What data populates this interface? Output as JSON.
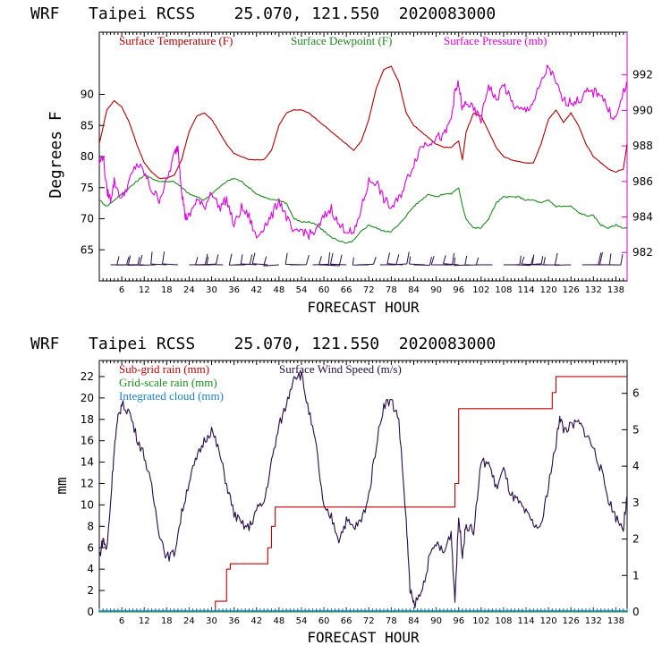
{
  "colors": {
    "temperature": "#b00000",
    "dewpoint": "#1e8a1e",
    "pressure": "#dd00dd",
    "wind": "#2a0a4a",
    "subgrid": "#c00000",
    "gridscale": "#1e8a1e",
    "cloud": "#1a7fd0",
    "axis": "#000000"
  },
  "chart_data": [
    {
      "type": "line",
      "title": "WRF   Taipei RCSS    25.070, 121.550  2020083000",
      "xlabel": "FORECAST HOUR",
      "ylabel": "Degrees F",
      "xlim": [
        0,
        141
      ],
      "ylim": [
        60,
        100
      ],
      "y2lim": [
        980.4,
        994.4
      ],
      "xticks": [
        6,
        12,
        18,
        24,
        30,
        36,
        42,
        48,
        54,
        60,
        66,
        72,
        78,
        84,
        90,
        96,
        102,
        108,
        114,
        120,
        126,
        132,
        138
      ],
      "yticks": [
        65,
        70,
        75,
        80,
        85,
        90
      ],
      "y2ticks": [
        982,
        984,
        986,
        988,
        990,
        992
      ],
      "legend": [
        "Surface Temperature (F)",
        "Surface Dewpoint (F)",
        "Surface Pressure (mb)"
      ],
      "series": [
        {
          "name": "Surface Temperature (F)",
          "axis": "left",
          "x": [
            0,
            2,
            4,
            6,
            8,
            10,
            12,
            14,
            16,
            18,
            20,
            22,
            24,
            26,
            28,
            30,
            32,
            34,
            36,
            38,
            40,
            42,
            44,
            46,
            48,
            50,
            52,
            54,
            56,
            58,
            60,
            62,
            64,
            66,
            68,
            70,
            72,
            74,
            76,
            78,
            80,
            82,
            84,
            86,
            88,
            90,
            92,
            94,
            96,
            97,
            98,
            100,
            102,
            104,
            106,
            108,
            110,
            112,
            114,
            116,
            118,
            120,
            122,
            124,
            126,
            128,
            130,
            132,
            134,
            136,
            138,
            140,
            141
          ],
          "values": [
            82,
            87.5,
            89,
            88,
            85.5,
            82,
            79,
            77.5,
            76.5,
            76.5,
            77,
            79.5,
            84,
            86.5,
            87,
            86,
            84,
            82,
            80.5,
            80,
            79.5,
            79.5,
            79.5,
            81,
            85,
            87,
            87.5,
            87.5,
            87,
            86,
            85,
            84,
            83,
            82,
            81,
            82.5,
            86,
            91,
            94,
            94.5,
            92,
            87,
            85,
            84,
            83,
            82,
            81.5,
            81.5,
            82.5,
            79.5,
            84,
            87,
            86.5,
            84,
            81.5,
            80,
            79.5,
            79.2,
            79,
            79,
            82,
            86,
            87.5,
            85.5,
            87,
            85,
            82,
            80,
            79,
            78,
            77.5,
            78,
            82
          ]
        },
        {
          "name": "Surface Dewpoint (F)",
          "axis": "left",
          "x": [
            0,
            2,
            4,
            6,
            8,
            10,
            12,
            14,
            16,
            18,
            20,
            22,
            24,
            26,
            28,
            30,
            32,
            34,
            36,
            38,
            40,
            42,
            44,
            46,
            48,
            50,
            52,
            54,
            56,
            58,
            60,
            62,
            64,
            66,
            68,
            70,
            72,
            74,
            76,
            78,
            80,
            82,
            84,
            86,
            88,
            90,
            92,
            94,
            96,
            97,
            98,
            100,
            102,
            104,
            106,
            108,
            110,
            112,
            114,
            116,
            118,
            120,
            122,
            124,
            126,
            128,
            130,
            132,
            134,
            136,
            138,
            140,
            141
          ],
          "values": [
            73,
            72,
            73,
            74,
            75,
            76,
            77,
            76.5,
            76,
            76,
            76,
            75,
            74,
            73.5,
            73,
            74,
            75,
            76,
            76.5,
            76,
            75,
            74,
            73.5,
            73,
            73,
            72.5,
            70,
            69.5,
            69.5,
            69,
            68,
            67,
            66.5,
            66,
            66.5,
            68,
            69,
            68.5,
            68,
            68,
            69,
            70.5,
            72,
            73,
            74,
            73.5,
            74,
            74,
            75,
            72,
            70,
            68.5,
            68.5,
            70,
            72.5,
            73.5,
            73.5,
            73.5,
            73,
            73,
            72.5,
            73,
            72,
            72,
            72,
            71,
            70.5,
            70.5,
            69,
            68.5,
            69,
            68.5,
            68.5
          ]
        },
        {
          "name": "Surface Pressure (mb)",
          "axis": "right",
          "x": [
            0,
            1,
            2,
            3,
            4,
            6,
            8,
            10,
            12,
            14,
            16,
            18,
            20,
            21,
            22,
            23,
            24,
            26,
            28,
            30,
            32,
            34,
            36,
            38,
            40,
            42,
            44,
            46,
            48,
            50,
            52,
            54,
            56,
            58,
            60,
            62,
            64,
            66,
            68,
            70,
            72,
            74,
            76,
            78,
            80,
            82,
            84,
            86,
            88,
            90,
            92,
            94,
            95,
            96,
            97,
            98,
            100,
            102,
            104,
            106,
            108,
            110,
            112,
            114,
            116,
            118,
            120,
            122,
            124,
            126,
            128,
            130,
            132,
            134,
            136,
            138,
            140,
            141
          ],
          "values": [
            987,
            987.5,
            985.5,
            985,
            986,
            985,
            986,
            987,
            986.5,
            985.5,
            985,
            986,
            987.5,
            988,
            985.5,
            984,
            984,
            985,
            984.5,
            985.5,
            984.5,
            985,
            983.5,
            984.5,
            984,
            982.8,
            983.5,
            984,
            985,
            984,
            983,
            983.3,
            983,
            983.2,
            984,
            984.5,
            983.5,
            983.3,
            983,
            984.5,
            986,
            986,
            985,
            984.5,
            985,
            986,
            987,
            988,
            988.2,
            988.5,
            988.5,
            989.5,
            991,
            991.5,
            990,
            990.5,
            990,
            989.5,
            991.5,
            990.5,
            991.5,
            990.5,
            990,
            990,
            990.5,
            991.5,
            992.5,
            991.5,
            990.5,
            990.5,
            990.5,
            991,
            991,
            991,
            990,
            989.5,
            991,
            991.5
          ]
        }
      ],
      "wind_barbs_note": "surface wind barbs plotted along bottom of panel"
    },
    {
      "type": "line",
      "title": "WRF   Taipei RCSS    25.070, 121.550  2020083000",
      "xlabel": "FORECAST HOUR",
      "ylabel": "mm",
      "xlim": [
        0,
        141
      ],
      "ylim": [
        0,
        23.5
      ],
      "y2lim": [
        0,
        6.9
      ],
      "xticks": [
        6,
        12,
        18,
        24,
        30,
        36,
        42,
        48,
        54,
        60,
        66,
        72,
        78,
        84,
        90,
        96,
        102,
        108,
        114,
        120,
        126,
        132,
        138
      ],
      "yticks": [
        0,
        2,
        4,
        6,
        8,
        10,
        12,
        14,
        16,
        18,
        20,
        22
      ],
      "y2ticks": [
        0,
        1,
        2,
        3,
        4,
        5,
        6
      ],
      "legend": [
        "Sub-grid rain (mm)",
        "Grid-scale rain (mm)",
        "Integrated cloud (mm)",
        "Surface Wind Speed (m/s)"
      ],
      "series": [
        {
          "name": "Sub-grid rain (mm)",
          "axis": "left",
          "step": true,
          "x": [
            0,
            28,
            31,
            32,
            34,
            35,
            44,
            45,
            46,
            47,
            94,
            95,
            96,
            100,
            120,
            121,
            122,
            141
          ],
          "values": [
            0,
            0,
            1,
            1,
            4,
            4.5,
            4.5,
            6,
            8,
            9.8,
            9.8,
            12,
            19,
            19,
            19,
            20.5,
            22,
            22
          ]
        },
        {
          "name": "Grid-scale rain (mm)",
          "axis": "left",
          "x": [
            0,
            141
          ],
          "values": [
            0,
            0
          ]
        },
        {
          "name": "Integrated cloud (mm)",
          "axis": "left",
          "x": [
            0,
            141
          ],
          "values": [
            0.1,
            0.1
          ]
        },
        {
          "name": "Surface Wind Speed (m/s)",
          "axis": "right",
          "x": [
            0,
            1,
            2,
            3,
            4,
            5,
            6,
            8,
            10,
            12,
            14,
            16,
            18,
            20,
            22,
            24,
            26,
            28,
            30,
            32,
            34,
            36,
            38,
            40,
            42,
            44,
            46,
            48,
            50,
            52,
            54,
            56,
            58,
            60,
            62,
            64,
            66,
            68,
            70,
            72,
            74,
            76,
            78,
            80,
            82,
            83,
            84,
            86,
            88,
            90,
            92,
            94,
            95,
            96,
            97,
            98,
            100,
            102,
            104,
            106,
            108,
            110,
            112,
            114,
            116,
            118,
            120,
            122,
            123,
            124,
            126,
            128,
            130,
            132,
            134,
            136,
            138,
            140,
            141
          ],
          "values": [
            1.5,
            2,
            1.7,
            3,
            4.5,
            5.3,
            5.7,
            5.5,
            4.8,
            4.3,
            3.4,
            2.2,
            1.5,
            1.6,
            2.7,
            3.6,
            4.2,
            4.7,
            5,
            4.4,
            3.5,
            2.7,
            2.4,
            2.3,
            2.8,
            3,
            4.1,
            5.1,
            5.7,
            6.5,
            6.5,
            5.5,
            4.5,
            2.8,
            2.6,
            2,
            2.5,
            2.3,
            2.5,
            3.2,
            4.6,
            5.7,
            5.8,
            5.3,
            2.5,
            0.6,
            0.2,
            0.5,
            1.4,
            1.9,
            1.6,
            2.2,
            0.3,
            2.6,
            1.6,
            2.4,
            2.2,
            4.1,
            4.1,
            3.4,
            3.9,
            3.2,
            3,
            2.7,
            2.4,
            2.3,
            3.5,
            4.6,
            5.4,
            5,
            5.1,
            5.2,
            4.9,
            4.5,
            3.9,
            3.1,
            2.6,
            2.3,
            3.2
          ]
        }
      ]
    }
  ]
}
